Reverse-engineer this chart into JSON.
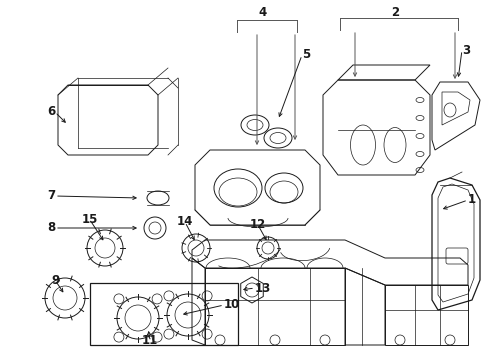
{
  "bg_color": "#ffffff",
  "lc": "#1a1a1a",
  "gc": "#555555",
  "figsize": [
    4.89,
    3.6
  ],
  "dpi": 100
}
